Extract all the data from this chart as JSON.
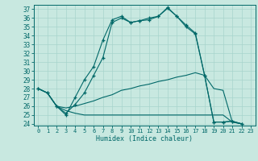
{
  "xlabel": "Humidex (Indice chaleur)",
  "xlim": [
    -0.5,
    23.5
  ],
  "ylim": [
    23.8,
    37.5
  ],
  "yticks": [
    24,
    25,
    26,
    27,
    28,
    29,
    30,
    31,
    32,
    33,
    34,
    35,
    36,
    37
  ],
  "xticks": [
    0,
    1,
    2,
    3,
    4,
    5,
    6,
    7,
    8,
    9,
    10,
    11,
    12,
    13,
    14,
    15,
    16,
    17,
    18,
    19,
    20,
    21,
    22,
    23
  ],
  "bg_color": "#c8e8e0",
  "line_color": "#006868",
  "grid_color": "#a8d4cc",
  "line1_x": [
    0,
    1,
    2,
    3,
    4,
    5,
    6,
    7,
    8,
    9,
    10,
    11,
    12,
    13,
    14,
    15,
    16,
    17,
    18,
    19,
    20,
    21,
    22
  ],
  "line1_y": [
    28.0,
    27.5,
    26.0,
    25.0,
    27.0,
    29.0,
    30.5,
    33.5,
    35.8,
    36.2,
    35.5,
    35.7,
    36.0,
    36.2,
    37.2,
    36.2,
    35.2,
    34.3,
    29.5,
    24.2,
    24.2,
    24.3,
    24.0
  ],
  "line2_x": [
    0,
    1,
    2,
    3,
    4,
    5,
    6,
    7,
    8,
    9,
    10,
    11,
    12,
    13,
    14,
    15,
    16,
    17,
    18,
    19,
    20,
    21,
    22
  ],
  "line2_y": [
    28.0,
    27.5,
    26.0,
    25.2,
    26.2,
    27.5,
    29.5,
    31.5,
    35.5,
    36.0,
    35.5,
    35.7,
    35.8,
    36.2,
    37.1,
    36.2,
    35.0,
    34.2,
    29.5,
    24.2,
    24.2,
    24.3,
    24.0
  ],
  "line3_x": [
    0,
    1,
    2,
    3,
    4,
    5,
    6,
    7,
    8,
    9,
    10,
    11,
    12,
    13,
    14,
    15,
    16,
    17,
    18,
    19,
    20,
    21,
    22
  ],
  "line3_y": [
    28.0,
    27.5,
    26.0,
    25.8,
    26.0,
    26.3,
    26.6,
    27.0,
    27.3,
    27.8,
    28.0,
    28.3,
    28.5,
    28.8,
    29.0,
    29.3,
    29.5,
    29.8,
    29.5,
    28.0,
    27.8,
    24.2,
    24.0
  ],
  "line4_x": [
    0,
    1,
    2,
    3,
    4,
    5,
    6,
    7,
    8,
    9,
    10,
    11,
    12,
    13,
    14,
    15,
    16,
    17,
    18,
    19,
    20,
    21,
    22
  ],
  "line4_y": [
    28.0,
    27.5,
    26.0,
    25.5,
    25.2,
    25.0,
    25.0,
    25.0,
    25.0,
    25.0,
    25.0,
    25.0,
    25.0,
    25.0,
    25.0,
    25.0,
    25.0,
    25.0,
    25.0,
    25.0,
    25.0,
    24.2,
    24.0
  ]
}
